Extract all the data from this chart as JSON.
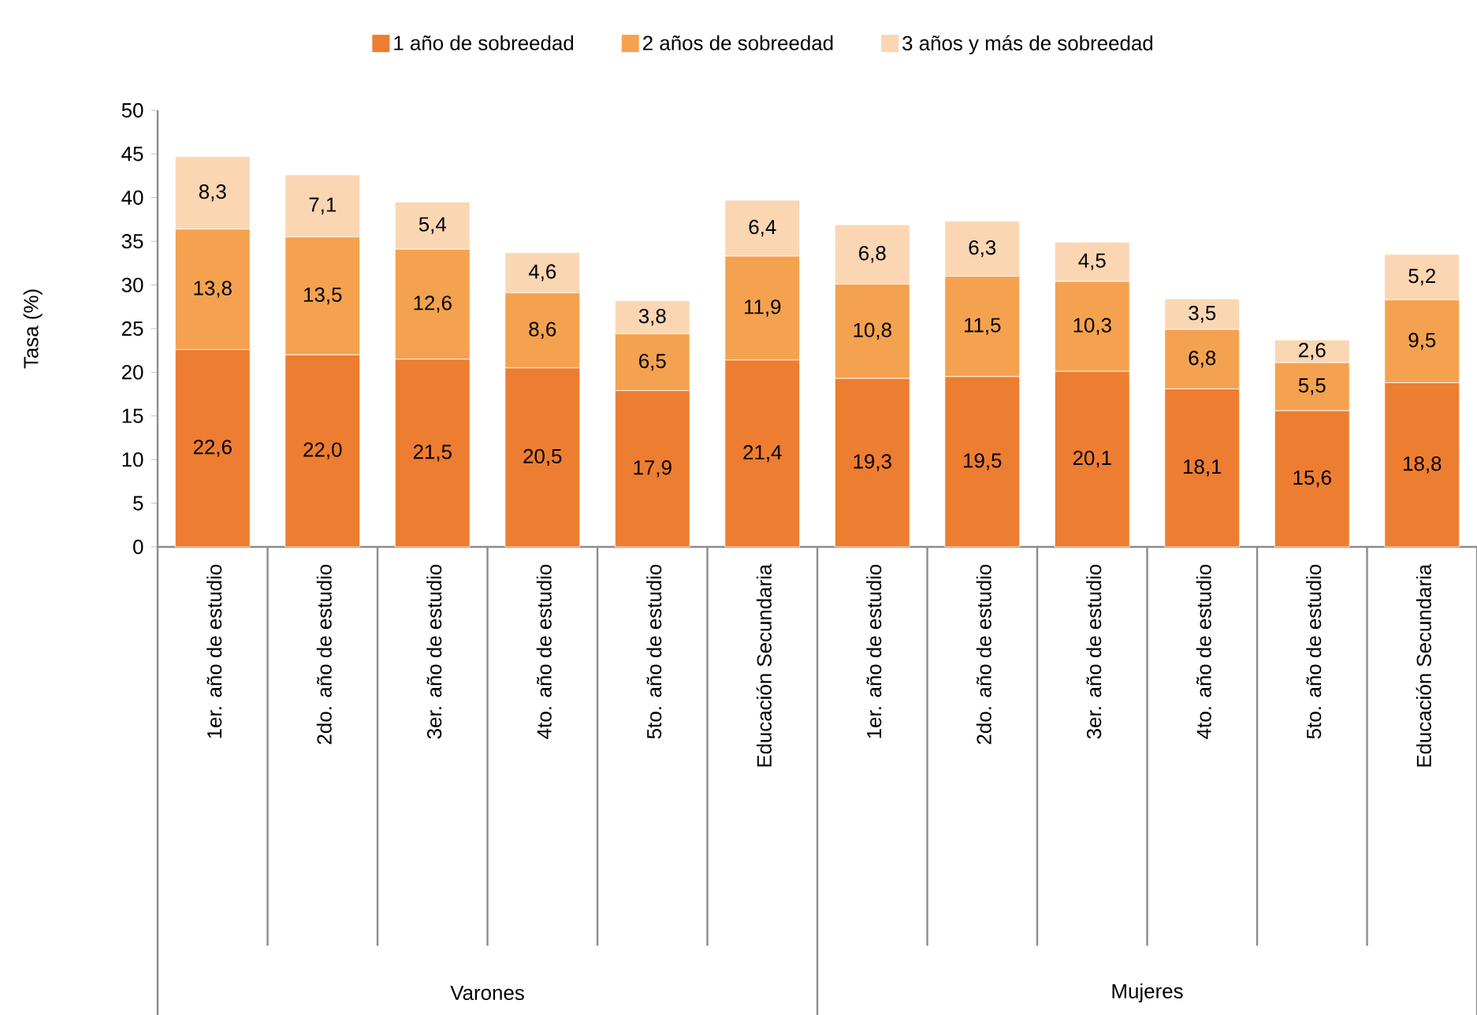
{
  "chart_data": {
    "type": "bar",
    "stacked": true,
    "ylabel": "Tasa (%)",
    "categories": [
      "1er. año de estudio",
      "2do. año de estudio",
      "3er. año de estudio",
      "4to. año de estudio",
      "5to. año de estudio",
      "Educación Secundaria",
      "1er. año de estudio",
      "2do. año de estudio",
      "3er. año de estudio",
      "4to. año de estudio",
      "5to. año de estudio",
      "Educación Secundaria"
    ],
    "series": [
      {
        "name": "1 año de sobreedad",
        "color": "#ed7d31",
        "values": [
          22.6,
          22.0,
          21.5,
          20.5,
          17.9,
          21.4,
          19.3,
          19.5,
          20.1,
          18.1,
          15.6,
          18.8
        ],
        "value_labels": [
          "22,6",
          "22,0",
          "21,5",
          "20,5",
          "17,9",
          "21,4",
          "19,3",
          "19,5",
          "20,1",
          "18,1",
          "15,6",
          "18,8"
        ]
      },
      {
        "name": "2 años de sobreedad",
        "color": "#f4a24f",
        "values": [
          13.8,
          13.5,
          12.6,
          8.6,
          6.5,
          11.9,
          10.8,
          11.5,
          10.3,
          6.8,
          5.5,
          9.5
        ],
        "value_labels": [
          "13,8",
          "13,5",
          "12,6",
          "8,6",
          "6,5",
          "11,9",
          "10,8",
          "11,5",
          "10,3",
          "6,8",
          "5,5",
          "9,5"
        ]
      },
      {
        "name": "3 años y más de sobreedad",
        "color": "#fbd6b3",
        "values": [
          8.3,
          7.1,
          5.4,
          4.6,
          3.8,
          6.4,
          6.8,
          6.3,
          4.5,
          3.5,
          2.6,
          5.2
        ],
        "value_labels": [
          "8,3",
          "7,1",
          "5,4",
          "4,6",
          "3,8",
          "6,4",
          "6,8",
          "6,3",
          "4,5",
          "3,5",
          "2,6",
          "5,2"
        ]
      }
    ],
    "ylim": [
      0,
      50
    ],
    "yticks": [
      0,
      5,
      10,
      15,
      20,
      25,
      30,
      35,
      40,
      45,
      50
    ],
    "legend": "top",
    "grid": false,
    "annotations": [
      "Varones",
      "Mujeres"
    ]
  }
}
